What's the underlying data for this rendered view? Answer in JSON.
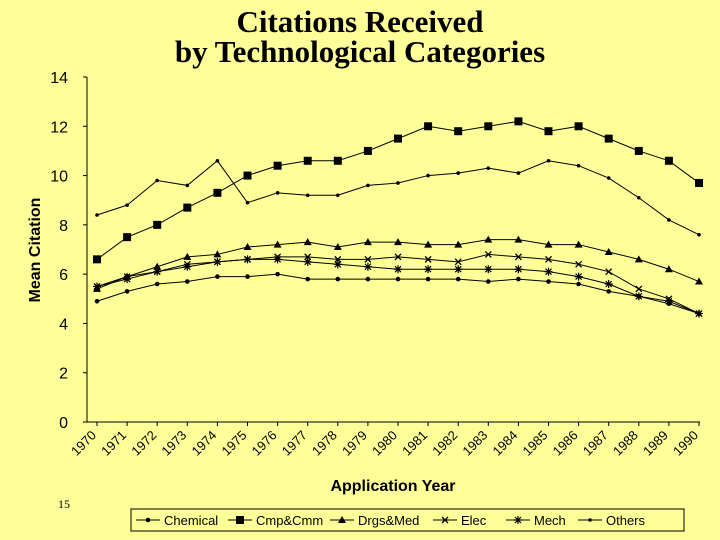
{
  "slide": {
    "title_line1": "Citations Received",
    "title_line2": "by Technological Categories",
    "page_number": "15"
  },
  "chart_data": {
    "type": "line",
    "title": "Citations Received by Technological Categories",
    "xlabel": "Application Year",
    "ylabel": "Mean Citation",
    "ylim": [
      0,
      14
    ],
    "yticks": [
      0,
      2,
      4,
      6,
      8,
      10,
      12,
      14
    ],
    "grid": false,
    "legend_position": "bottom",
    "x": [
      "1970",
      "1971",
      "1972",
      "1973",
      "1974",
      "1975",
      "1976",
      "1977",
      "1978",
      "1979",
      "1980",
      "1981",
      "1982",
      "1983",
      "1984",
      "1985",
      "1986",
      "1987",
      "1988",
      "1989",
      "1990"
    ],
    "series": [
      {
        "name": "Chemical",
        "marker": "dot",
        "values": [
          4.9,
          5.3,
          5.6,
          5.7,
          5.9,
          5.9,
          6.0,
          5.8,
          5.8,
          5.8,
          5.8,
          5.8,
          5.8,
          5.7,
          5.8,
          5.7,
          5.6,
          5.3,
          5.1,
          4.8,
          4.4
        ]
      },
      {
        "name": "Cmp&Cmm",
        "marker": "square",
        "values": [
          6.6,
          7.5,
          8.0,
          8.7,
          9.3,
          10.0,
          10.4,
          10.6,
          10.6,
          11.0,
          11.5,
          12.0,
          11.8,
          12.0,
          12.2,
          11.8,
          12.0,
          11.5,
          11.0,
          10.6,
          9.7
        ]
      },
      {
        "name": "Drgs&Med",
        "marker": "triangle",
        "values": [
          5.4,
          5.9,
          6.3,
          6.7,
          6.8,
          7.1,
          7.2,
          7.3,
          7.1,
          7.3,
          7.3,
          7.2,
          7.2,
          7.4,
          7.4,
          7.2,
          7.2,
          6.9,
          6.6,
          6.2,
          5.7
        ]
      },
      {
        "name": "Elec",
        "marker": "x",
        "values": [
          5.5,
          5.9,
          6.1,
          6.4,
          6.5,
          6.6,
          6.7,
          6.7,
          6.6,
          6.6,
          6.7,
          6.6,
          6.5,
          6.8,
          6.7,
          6.6,
          6.4,
          6.1,
          5.4,
          5.0,
          4.4
        ]
      },
      {
        "name": "Mech",
        "marker": "star",
        "values": [
          5.5,
          5.8,
          6.1,
          6.3,
          6.5,
          6.6,
          6.6,
          6.5,
          6.4,
          6.3,
          6.2,
          6.2,
          6.2,
          6.2,
          6.2,
          6.1,
          5.9,
          5.6,
          5.1,
          4.9,
          4.4
        ]
      },
      {
        "name": "Others",
        "marker": "dot-small",
        "values": [
          8.4,
          8.8,
          9.8,
          9.6,
          10.6,
          8.9,
          9.3,
          9.2,
          9.2,
          9.6,
          9.7,
          10.0,
          10.1,
          10.3,
          10.1,
          10.6,
          10.4,
          9.9,
          9.1,
          8.2,
          7.6
        ]
      }
    ]
  }
}
